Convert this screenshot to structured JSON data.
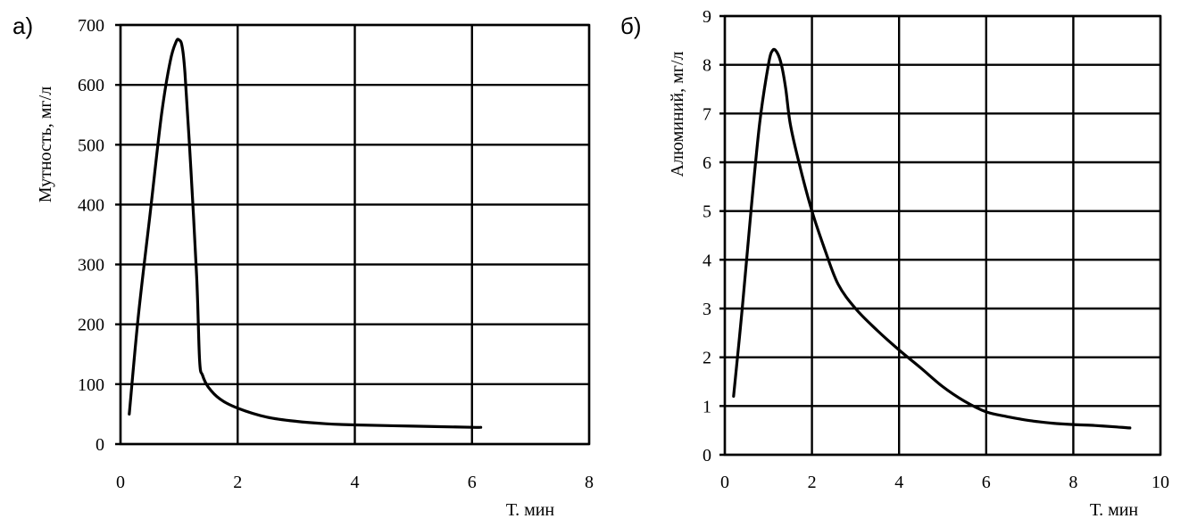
{
  "chart_data": [
    {
      "type": "line",
      "panel_label": "а)",
      "title": "",
      "xlabel": "Т. мин",
      "ylabel": "Мутность, мг/л",
      "xlim": [
        0,
        8
      ],
      "ylim": [
        0,
        700
      ],
      "x_ticks": [
        0,
        2,
        4,
        6,
        8
      ],
      "y_ticks": [
        0,
        100,
        200,
        300,
        400,
        500,
        600,
        700
      ],
      "grid": true,
      "legend": "none",
      "series": [
        {
          "color": "#000000",
          "x": [
            0.15,
            0.3,
            0.5,
            0.7,
            0.85,
            0.95,
            1.0,
            1.05,
            1.1,
            1.2,
            1.3,
            1.35,
            1.4,
            1.5,
            1.7,
            2.0,
            2.5,
            3.0,
            3.5,
            4.0,
            5.0,
            6.0,
            6.15
          ],
          "y": [
            50,
            210,
            380,
            550,
            640,
            672,
            675,
            665,
            620,
            460,
            280,
            140,
            115,
            95,
            75,
            60,
            45,
            38,
            34,
            32,
            30,
            28,
            28
          ]
        }
      ]
    },
    {
      "type": "line",
      "panel_label": "б)",
      "title": "",
      "xlabel": "Т. мин",
      "ylabel": "Алюминий, мг/л",
      "xlim": [
        0,
        10
      ],
      "ylim": [
        0,
        9
      ],
      "x_ticks": [
        0,
        2,
        4,
        6,
        8,
        10
      ],
      "y_ticks": [
        0,
        1,
        2,
        3,
        4,
        5,
        6,
        7,
        8,
        9
      ],
      "grid": true,
      "legend": "none",
      "series": [
        {
          "color": "#000000",
          "x": [
            0.2,
            0.4,
            0.6,
            0.8,
            1.0,
            1.1,
            1.2,
            1.3,
            1.4,
            1.5,
            1.7,
            2.0,
            2.3,
            2.6,
            3.0,
            3.5,
            4.0,
            4.5,
            5.0,
            5.5,
            6.0,
            6.5,
            7.0,
            7.5,
            8.0,
            8.5,
            9.0,
            9.3
          ],
          "y": [
            1.2,
            3.0,
            5.0,
            6.8,
            8.0,
            8.3,
            8.25,
            8.0,
            7.5,
            6.8,
            6.0,
            5.0,
            4.2,
            3.5,
            3.0,
            2.55,
            2.15,
            1.78,
            1.4,
            1.1,
            0.88,
            0.78,
            0.7,
            0.65,
            0.62,
            0.6,
            0.57,
            0.55
          ]
        }
      ]
    }
  ]
}
